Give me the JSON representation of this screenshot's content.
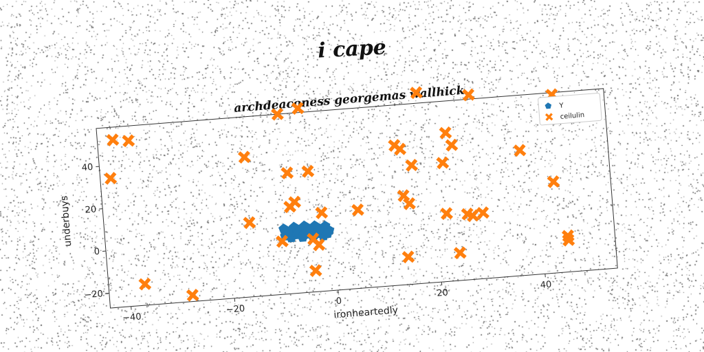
{
  "suptitle": "i cape",
  "chart_data": {
    "type": "scatter",
    "title": "archdeaconess georgemas wallhick",
    "xlabel": "ironheartedly",
    "ylabel": "underbuys",
    "xlim": [
      -44,
      54
    ],
    "ylim": [
      -27,
      58
    ],
    "xticks": [
      -40,
      -20,
      0,
      20,
      40
    ],
    "yticks": [
      -20,
      0,
      20,
      40
    ],
    "grid": false,
    "legend_position": "top-right",
    "series": [
      {
        "name": "Y",
        "color": "#1f77b4",
        "marker": "pentagon",
        "points": [
          [
            -9.5,
            3.8
          ],
          [
            -8.5,
            2.2
          ],
          [
            -7.5,
            4.2
          ],
          [
            -6.5,
            2.6
          ],
          [
            -5.5,
            4.4
          ],
          [
            -4.5,
            2.7
          ],
          [
            -3.5,
            4.1
          ],
          [
            -2.5,
            2.4
          ],
          [
            -1.5,
            3.6
          ],
          [
            -0.8,
            1.4
          ],
          [
            -9.3,
            0.4
          ],
          [
            -8.2,
            -0.6
          ],
          [
            -7.0,
            0.6
          ],
          [
            -6.0,
            -0.8
          ],
          [
            -5.0,
            0.5
          ],
          [
            -4.0,
            -0.9
          ],
          [
            -3.0,
            0.3
          ],
          [
            -2.0,
            -1.0
          ],
          [
            -1.2,
            0.0
          ],
          [
            -8.8,
            1.8
          ],
          [
            -6.8,
            1.6
          ],
          [
            -4.8,
            1.9
          ],
          [
            -2.8,
            1.7
          ],
          [
            -3.8,
            -0.2
          ],
          [
            -5.8,
            0.2
          ]
        ]
      },
      {
        "name": "ceilulin",
        "color": "#ff7f0e",
        "marker": "x",
        "points": [
          [
            -41,
            52
          ],
          [
            -38,
            51
          ],
          [
            -42,
            34
          ],
          [
            -16,
            39
          ],
          [
            -5,
            60
          ],
          [
            -9,
            58
          ],
          [
            -8,
            30
          ],
          [
            -4,
            30
          ],
          [
            -8,
            14
          ],
          [
            -7,
            16
          ],
          [
            -16,
            8
          ],
          [
            -10,
            -2
          ],
          [
            -4,
            -2
          ],
          [
            -3,
            -5
          ],
          [
            -2,
            10
          ],
          [
            5,
            10
          ],
          [
            -4,
            -17
          ],
          [
            -37,
            -17
          ],
          [
            -28,
            -24
          ],
          [
            13,
            39
          ],
          [
            14,
            37
          ],
          [
            16,
            29
          ],
          [
            14,
            15
          ],
          [
            15,
            11
          ],
          [
            14,
            -14
          ],
          [
            18,
            63
          ],
          [
            22,
            29
          ],
          [
            23,
            43
          ],
          [
            24,
            37
          ],
          [
            28,
            60
          ],
          [
            22,
            5
          ],
          [
            24,
            -14
          ],
          [
            26,
            4
          ],
          [
            27,
            3
          ],
          [
            29,
            4
          ],
          [
            37,
            32
          ],
          [
            43,
            16
          ],
          [
            44,
            57
          ],
          [
            45,
            -10
          ],
          [
            45,
            -12
          ]
        ]
      }
    ]
  }
}
